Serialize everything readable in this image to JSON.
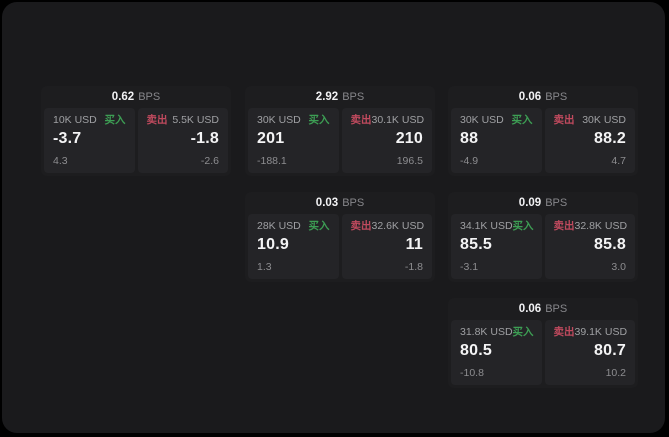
{
  "colors": {
    "page_bg": "#000000",
    "surface_bg": "#1a1a1c",
    "card_bg": "#1d1d1f",
    "panel_bg": "#242427",
    "text_primary": "#f4f4f5",
    "text_secondary": "#9fa0a3",
    "text_muted": "#87878b",
    "buy_green": "#3d9e54",
    "sell_red": "#c04a5e"
  },
  "labels": {
    "bps_unit": "BPS",
    "buy": "买入",
    "sell": "卖出"
  },
  "cards": [
    {
      "bps": "0.62",
      "grid": {
        "col": 0,
        "row": 0
      },
      "buy": {
        "amount": "10K USD",
        "price": "-3.7",
        "delta": "4.3"
      },
      "sell": {
        "amount": "5.5K USD",
        "price": "-1.8",
        "delta": "-2.6"
      }
    },
    {
      "bps": "2.92",
      "grid": {
        "col": 1,
        "row": 0
      },
      "buy": {
        "amount": "30K USD",
        "price": "201",
        "delta": "-188.1"
      },
      "sell": {
        "amount": "30.1K USD",
        "price": "210",
        "delta": "196.5"
      }
    },
    {
      "bps": "0.06",
      "grid": {
        "col": 2,
        "row": 0
      },
      "buy": {
        "amount": "30K USD",
        "price": "88",
        "delta": "-4.9"
      },
      "sell": {
        "amount": "30K USD",
        "price": "88.2",
        "delta": "4.7"
      }
    },
    {
      "bps": "0.03",
      "grid": {
        "col": 1,
        "row": 1
      },
      "buy": {
        "amount": "28K USD",
        "price": "10.9",
        "delta": "1.3"
      },
      "sell": {
        "amount": "32.6K USD",
        "price": "11",
        "delta": "-1.8"
      }
    },
    {
      "bps": "0.09",
      "grid": {
        "col": 2,
        "row": 1
      },
      "buy": {
        "amount": "34.1K USD",
        "price": "85.5",
        "delta": "-3.1"
      },
      "sell": {
        "amount": "32.8K USD",
        "price": "85.8",
        "delta": "3.0"
      }
    },
    {
      "bps": "0.06",
      "grid": {
        "col": 2,
        "row": 2
      },
      "buy": {
        "amount": "31.8K USD",
        "price": "80.5",
        "delta": "-10.8"
      },
      "sell": {
        "amount": "39.1K USD",
        "price": "80.7",
        "delta": "10.2"
      }
    }
  ]
}
